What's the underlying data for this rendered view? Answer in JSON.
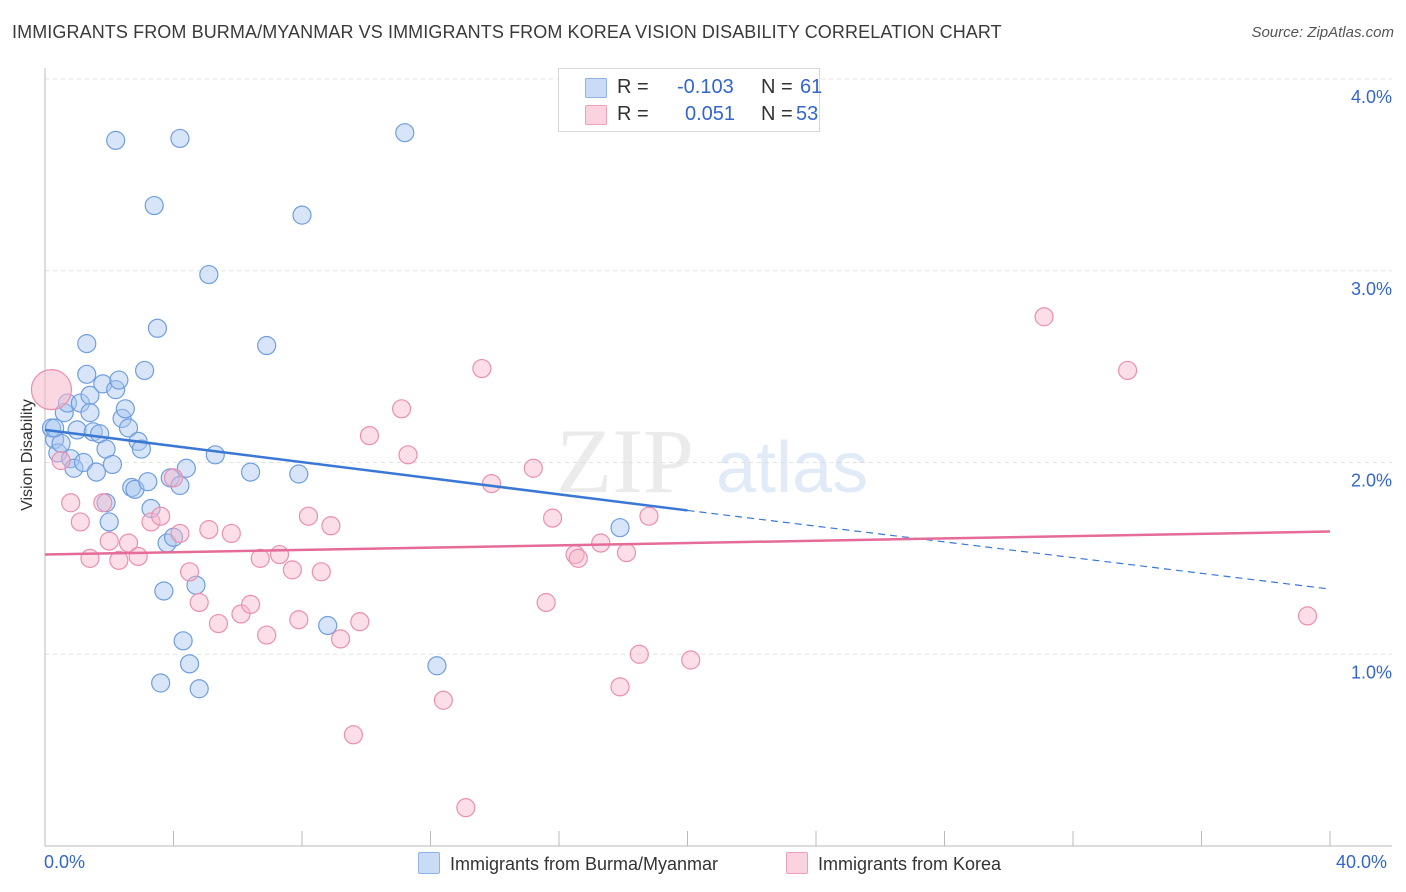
{
  "title": "IMMIGRANTS FROM BURMA/MYANMAR VS IMMIGRANTS FROM KOREA VISION DISABILITY CORRELATION CHART",
  "source": "Source: ZipAtlas.com",
  "watermark": {
    "zip": "ZIP",
    "atlas": "atlas"
  },
  "legend": {
    "r_label": "R =",
    "n_label": "N =",
    "series": [
      {
        "r": "-0.103",
        "n": "61",
        "color": "#a9c6ef"
      },
      {
        "r": "0.051",
        "n": "53",
        "color": "#f6b6c9"
      }
    ]
  },
  "bottom_legend": {
    "burma": "Immigrants from Burma/Myanmar",
    "korea": "Immigrants from Korea"
  },
  "x_ticks": {
    "left": "0.0%",
    "right": "40.0%"
  },
  "colors": {
    "blue": "#3a78d4",
    "pink": "#e56b98",
    "blue_fill": "#a9c6ef",
    "pink_fill": "#f6b6c9",
    "axis_text": "#3366cc"
  },
  "chart_data": {
    "type": "scatter",
    "title": "IMMIGRANTS FROM BURMA/MYANMAR VS IMMIGRANTS FROM KOREA VISION DISABILITY CORRELATION CHART",
    "xlabel": "",
    "ylabel": "Vision Disability",
    "xlim": [
      0,
      40
    ],
    "ylim": [
      0,
      4.0
    ],
    "y_ticks": [
      "1.0%",
      "2.0%",
      "3.0%",
      "4.0%"
    ],
    "y_tick_values": [
      1.0,
      2.0,
      3.0,
      4.0
    ],
    "grid": true,
    "series": [
      {
        "name": "Immigrants from Burma/Myanmar",
        "color": "#3a78d4",
        "points": [
          [
            0.2,
            2.18
          ],
          [
            0.3,
            2.12
          ],
          [
            0.4,
            2.05
          ],
          [
            0.5,
            2.1
          ],
          [
            0.6,
            2.26
          ],
          [
            0.7,
            2.31
          ],
          [
            0.8,
            2.02
          ],
          [
            0.9,
            1.97
          ],
          [
            1.0,
            2.17
          ],
          [
            1.1,
            2.31
          ],
          [
            1.2,
            2.0
          ],
          [
            1.3,
            2.46
          ],
          [
            1.4,
            2.35
          ],
          [
            1.3,
            2.62
          ],
          [
            1.4,
            2.26
          ],
          [
            1.5,
            2.16
          ],
          [
            1.6,
            1.95
          ],
          [
            1.7,
            2.15
          ],
          [
            1.8,
            2.41
          ],
          [
            1.9,
            1.79
          ],
          [
            1.9,
            2.07
          ],
          [
            2.0,
            1.69
          ],
          [
            2.1,
            1.99
          ],
          [
            2.2,
            2.38
          ],
          [
            2.3,
            2.43
          ],
          [
            2.4,
            2.23
          ],
          [
            2.5,
            2.28
          ],
          [
            2.6,
            2.18
          ],
          [
            2.7,
            1.87
          ],
          [
            2.8,
            1.86
          ],
          [
            2.9,
            2.11
          ],
          [
            3.0,
            2.07
          ],
          [
            3.1,
            2.48
          ],
          [
            3.2,
            1.9
          ],
          [
            3.3,
            1.76
          ],
          [
            3.5,
            2.7
          ],
          [
            3.6,
            0.85
          ],
          [
            3.7,
            1.33
          ],
          [
            3.8,
            1.58
          ],
          [
            3.9,
            1.92
          ],
          [
            4.0,
            1.61
          ],
          [
            4.2,
            1.88
          ],
          [
            4.4,
            1.97
          ],
          [
            4.3,
            1.07
          ],
          [
            4.5,
            0.95
          ],
          [
            4.7,
            1.36
          ],
          [
            4.8,
            0.82
          ],
          [
            5.1,
            2.98
          ],
          [
            5.3,
            2.04
          ],
          [
            6.4,
            1.95
          ],
          [
            6.9,
            2.61
          ],
          [
            7.9,
            1.94
          ],
          [
            8.0,
            3.29
          ],
          [
            8.8,
            1.15
          ],
          [
            11.2,
            3.72
          ],
          [
            12.2,
            0.94
          ],
          [
            17.9,
            1.66
          ],
          [
            2.2,
            3.68
          ],
          [
            4.2,
            3.69
          ],
          [
            3.4,
            3.34
          ],
          [
            0.3,
            2.18
          ]
        ]
      },
      {
        "name": "Immigrants from Korea",
        "color": "#e56b98",
        "points": [
          [
            0.2,
            2.38
          ],
          [
            0.5,
            2.01
          ],
          [
            0.8,
            1.79
          ],
          [
            1.1,
            1.69
          ],
          [
            1.4,
            1.5
          ],
          [
            1.8,
            1.79
          ],
          [
            2.0,
            1.59
          ],
          [
            2.3,
            1.49
          ],
          [
            2.6,
            1.58
          ],
          [
            2.9,
            1.51
          ],
          [
            3.3,
            1.69
          ],
          [
            3.6,
            1.72
          ],
          [
            4.0,
            1.92
          ],
          [
            4.2,
            1.63
          ],
          [
            4.5,
            1.43
          ],
          [
            4.8,
            1.27
          ],
          [
            5.1,
            1.65
          ],
          [
            5.4,
            1.16
          ],
          [
            5.8,
            1.63
          ],
          [
            6.1,
            1.21
          ],
          [
            6.4,
            1.26
          ],
          [
            6.7,
            1.5
          ],
          [
            6.9,
            1.1
          ],
          [
            7.3,
            1.52
          ],
          [
            7.7,
            1.44
          ],
          [
            7.9,
            1.18
          ],
          [
            8.2,
            1.72
          ],
          [
            8.6,
            1.43
          ],
          [
            8.9,
            1.67
          ],
          [
            9.2,
            1.08
          ],
          [
            9.6,
            0.58
          ],
          [
            9.8,
            1.17
          ],
          [
            10.1,
            2.14
          ],
          [
            11.1,
            2.28
          ],
          [
            11.3,
            2.04
          ],
          [
            12.4,
            0.76
          ],
          [
            13.1,
            0.2
          ],
          [
            13.6,
            2.49
          ],
          [
            13.9,
            1.89
          ],
          [
            15.2,
            1.97
          ],
          [
            15.6,
            1.27
          ],
          [
            15.8,
            1.71
          ],
          [
            16.5,
            1.52
          ],
          [
            16.6,
            1.5
          ],
          [
            17.3,
            1.58
          ],
          [
            17.9,
            0.83
          ],
          [
            18.1,
            1.53
          ],
          [
            18.5,
            1.0
          ],
          [
            18.8,
            1.72
          ],
          [
            20.1,
            0.97
          ],
          [
            31.1,
            2.76
          ],
          [
            33.7,
            2.48
          ],
          [
            39.3,
            1.2
          ]
        ]
      }
    ],
    "trend_lines": [
      {
        "series": "Immigrants from Burma/Myanmar",
        "x": [
          0,
          20,
          40
        ],
        "y": [
          2.17,
          1.75,
          1.34
        ],
        "solid_until": 20
      },
      {
        "series": "Immigrants from Korea",
        "x": [
          0,
          40
        ],
        "y": [
          1.52,
          1.64
        ]
      }
    ]
  }
}
